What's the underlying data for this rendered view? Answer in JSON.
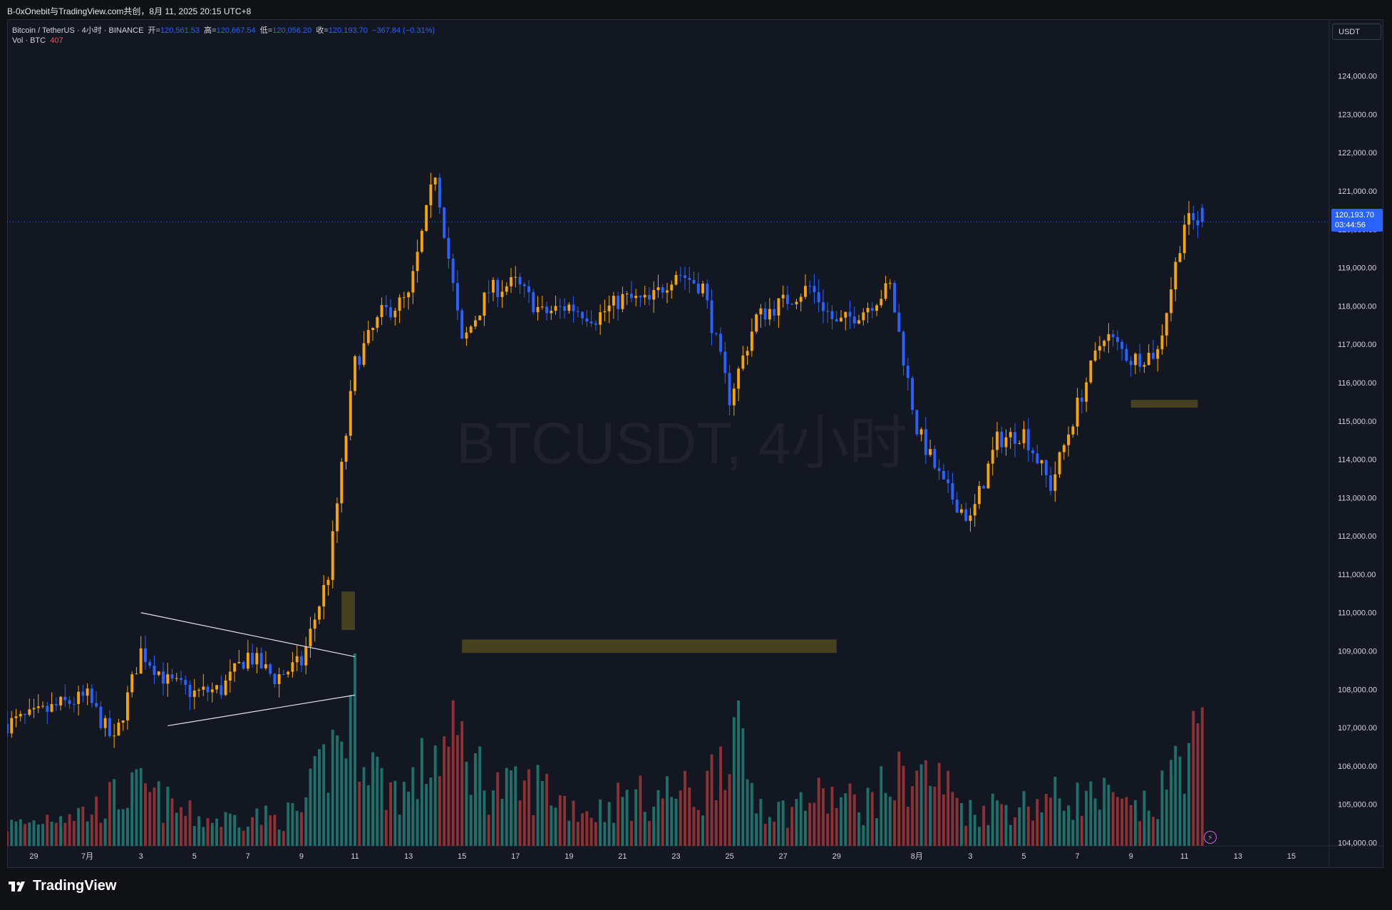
{
  "header": {
    "share_text": "B-0xOnebit与TradingView.com共创，8月 11, 2025 20:15 UTC+8"
  },
  "legend": {
    "symbol": "Bitcoin / TetherUS · 4小时 · BINANCE",
    "open_label": "开=",
    "open_value": "120,561.53",
    "high_label": "高=",
    "high_value": "120,667.54",
    "low_label": "低=",
    "low_value": "120,056.20",
    "close_label": "收=",
    "close_value": "120,193.70",
    "change": "−367.84 (−0.31%)",
    "vol_label": "Vol · BTC",
    "vol_value": "407"
  },
  "unit_box": "USDT",
  "price_tag": {
    "price": "120,193.70",
    "countdown": "03:44:56"
  },
  "watermark": "BTCUSDT, 4小时",
  "brand": "TradingView",
  "colors": {
    "up": "#f7a600",
    "down": "#2962ff",
    "vol_up": "#1f6f6a",
    "vol_down": "#8e3135",
    "zone": "#4d4721",
    "background": "#131722",
    "grid_text": "#d1d4dc"
  },
  "chart_data": {
    "type": "candlestick",
    "interval": "4h",
    "y_axis": {
      "side": "right",
      "ticks": [
        "104,000.00",
        "105,000.00",
        "106,000.00",
        "107,000.00",
        "108,000.00",
        "109,000.00",
        "110,000.00",
        "111,000.00",
        "112,000.00",
        "113,000.00",
        "114,000.00",
        "115,000.00",
        "116,000.00",
        "117,000.00",
        "118,000.00",
        "119,000.00",
        "120,000.00",
        "121,000.00",
        "122,000.00",
        "123,000.00",
        "124,000.00"
      ],
      "range": [
        103600,
        124700
      ]
    },
    "x_axis": {
      "ticks": [
        {
          "label": "29",
          "date": "2025-06-29"
        },
        {
          "label": "7月",
          "date": "2025-07-01"
        },
        {
          "label": "3",
          "date": "2025-07-03"
        },
        {
          "label": "5",
          "date": "2025-07-05"
        },
        {
          "label": "7",
          "date": "2025-07-07"
        },
        {
          "label": "9",
          "date": "2025-07-09"
        },
        {
          "label": "11",
          "date": "2025-07-11"
        },
        {
          "label": "13",
          "date": "2025-07-13"
        },
        {
          "label": "15",
          "date": "2025-07-15"
        },
        {
          "label": "17",
          "date": "2025-07-17"
        },
        {
          "label": "19",
          "date": "2025-07-19"
        },
        {
          "label": "21",
          "date": "2025-07-21"
        },
        {
          "label": "23",
          "date": "2025-07-23"
        },
        {
          "label": "25",
          "date": "2025-07-25"
        },
        {
          "label": "27",
          "date": "2025-07-27"
        },
        {
          "label": "29",
          "date": "2025-07-29"
        },
        {
          "label": "8月",
          "date": "2025-08-01"
        },
        {
          "label": "3",
          "date": "2025-08-03"
        },
        {
          "label": "5",
          "date": "2025-08-05"
        },
        {
          "label": "7",
          "date": "2025-08-07"
        },
        {
          "label": "9",
          "date": "2025-08-09"
        },
        {
          "label": "11",
          "date": "2025-08-11"
        },
        {
          "label": "13",
          "date": "2025-08-13"
        },
        {
          "label": "15",
          "date": "2025-08-15"
        }
      ],
      "range": [
        "2025-06-28",
        "2025-08-17"
      ]
    },
    "current_price": 120193.7,
    "series": [
      {
        "date": "2025-06-28",
        "close": 107100,
        "volume": 300
      },
      {
        "date": "2025-06-29",
        "close": 107300,
        "volume": 350
      },
      {
        "date": "2025-06-30",
        "close": 107600,
        "volume": 520
      },
      {
        "date": "2025-07-01",
        "close": 107800,
        "volume": 480
      },
      {
        "date": "2025-07-02",
        "close": 106600,
        "volume": 700
      },
      {
        "date": "2025-07-03",
        "close": 109000,
        "volume": 820
      },
      {
        "date": "2025-07-04",
        "close": 108200,
        "volume": 600
      },
      {
        "date": "2025-07-05",
        "close": 107900,
        "volume": 420
      },
      {
        "date": "2025-07-06",
        "close": 108000,
        "volume": 380
      },
      {
        "date": "2025-07-07",
        "close": 108900,
        "volume": 450
      },
      {
        "date": "2025-07-08",
        "close": 108300,
        "volume": 400
      },
      {
        "date": "2025-07-09",
        "close": 108700,
        "volume": 500
      },
      {
        "date": "2025-07-10",
        "close": 111000,
        "volume": 1300
      },
      {
        "date": "2025-07-11",
        "close": 116500,
        "volume": 2000
      },
      {
        "date": "2025-07-12",
        "close": 117800,
        "volume": 900
      },
      {
        "date": "2025-07-13",
        "close": 118200,
        "volume": 800
      },
      {
        "date": "2025-07-14",
        "close": 121500,
        "volume": 1400
      },
      {
        "date": "2025-07-15",
        "close": 117000,
        "volume": 1500
      },
      {
        "date": "2025-07-16",
        "close": 118400,
        "volume": 900
      },
      {
        "date": "2025-07-17",
        "close": 118600,
        "volume": 800
      },
      {
        "date": "2025-07-18",
        "close": 117800,
        "volume": 900
      },
      {
        "date": "2025-07-19",
        "close": 118000,
        "volume": 600
      },
      {
        "date": "2025-07-20",
        "close": 117700,
        "volume": 500
      },
      {
        "date": "2025-07-21",
        "close": 118200,
        "volume": 700
      },
      {
        "date": "2025-07-22",
        "close": 118100,
        "volume": 700
      },
      {
        "date": "2025-07-23",
        "close": 118900,
        "volume": 800
      },
      {
        "date": "2025-07-24",
        "close": 118500,
        "volume": 700
      },
      {
        "date": "2025-07-25",
        "close": 115600,
        "volume": 1800
      },
      {
        "date": "2025-07-26",
        "close": 117700,
        "volume": 700
      },
      {
        "date": "2025-07-27",
        "close": 118100,
        "volume": 500
      },
      {
        "date": "2025-07-28",
        "close": 118500,
        "volume": 700
      },
      {
        "date": "2025-07-29",
        "close": 117500,
        "volume": 700
      },
      {
        "date": "2025-07-30",
        "close": 117900,
        "volume": 600
      },
      {
        "date": "2025-07-31",
        "close": 118500,
        "volume": 900
      },
      {
        "date": "2025-08-01",
        "close": 114800,
        "volume": 1100
      },
      {
        "date": "2025-08-02",
        "close": 113300,
        "volume": 900
      },
      {
        "date": "2025-08-03",
        "close": 112400,
        "volume": 500
      },
      {
        "date": "2025-08-04",
        "close": 114500,
        "volume": 600
      },
      {
        "date": "2025-08-05",
        "close": 114700,
        "volume": 600
      },
      {
        "date": "2025-08-06",
        "close": 113300,
        "volume": 700
      },
      {
        "date": "2025-08-07",
        "close": 115400,
        "volume": 700
      },
      {
        "date": "2025-08-08",
        "close": 117300,
        "volume": 700
      },
      {
        "date": "2025-08-09",
        "close": 116600,
        "volume": 500
      },
      {
        "date": "2025-08-10",
        "close": 116800,
        "volume": 600
      },
      {
        "date": "2025-08-11",
        "close": 120194,
        "volume": 1500
      }
    ],
    "annotations": {
      "triangle_upper": [
        {
          "date": "2025-07-03",
          "price": 110000
        },
        {
          "date": "2025-07-11",
          "price": 108850
        }
      ],
      "triangle_lower": [
        {
          "date": "2025-07-04",
          "price": 107050
        },
        {
          "date": "2025-07-11",
          "price": 107850
        }
      ],
      "zones": [
        {
          "from": "2025-07-10T12:00",
          "to": "2025-07-11",
          "low": 109550,
          "high": 110550
        },
        {
          "from": "2025-07-15",
          "to": "2025-07-29",
          "low": 108950,
          "high": 109300
        },
        {
          "from": "2025-08-09",
          "to": "2025-08-11T12:00",
          "low": 115350,
          "high": 115550
        }
      ]
    }
  }
}
